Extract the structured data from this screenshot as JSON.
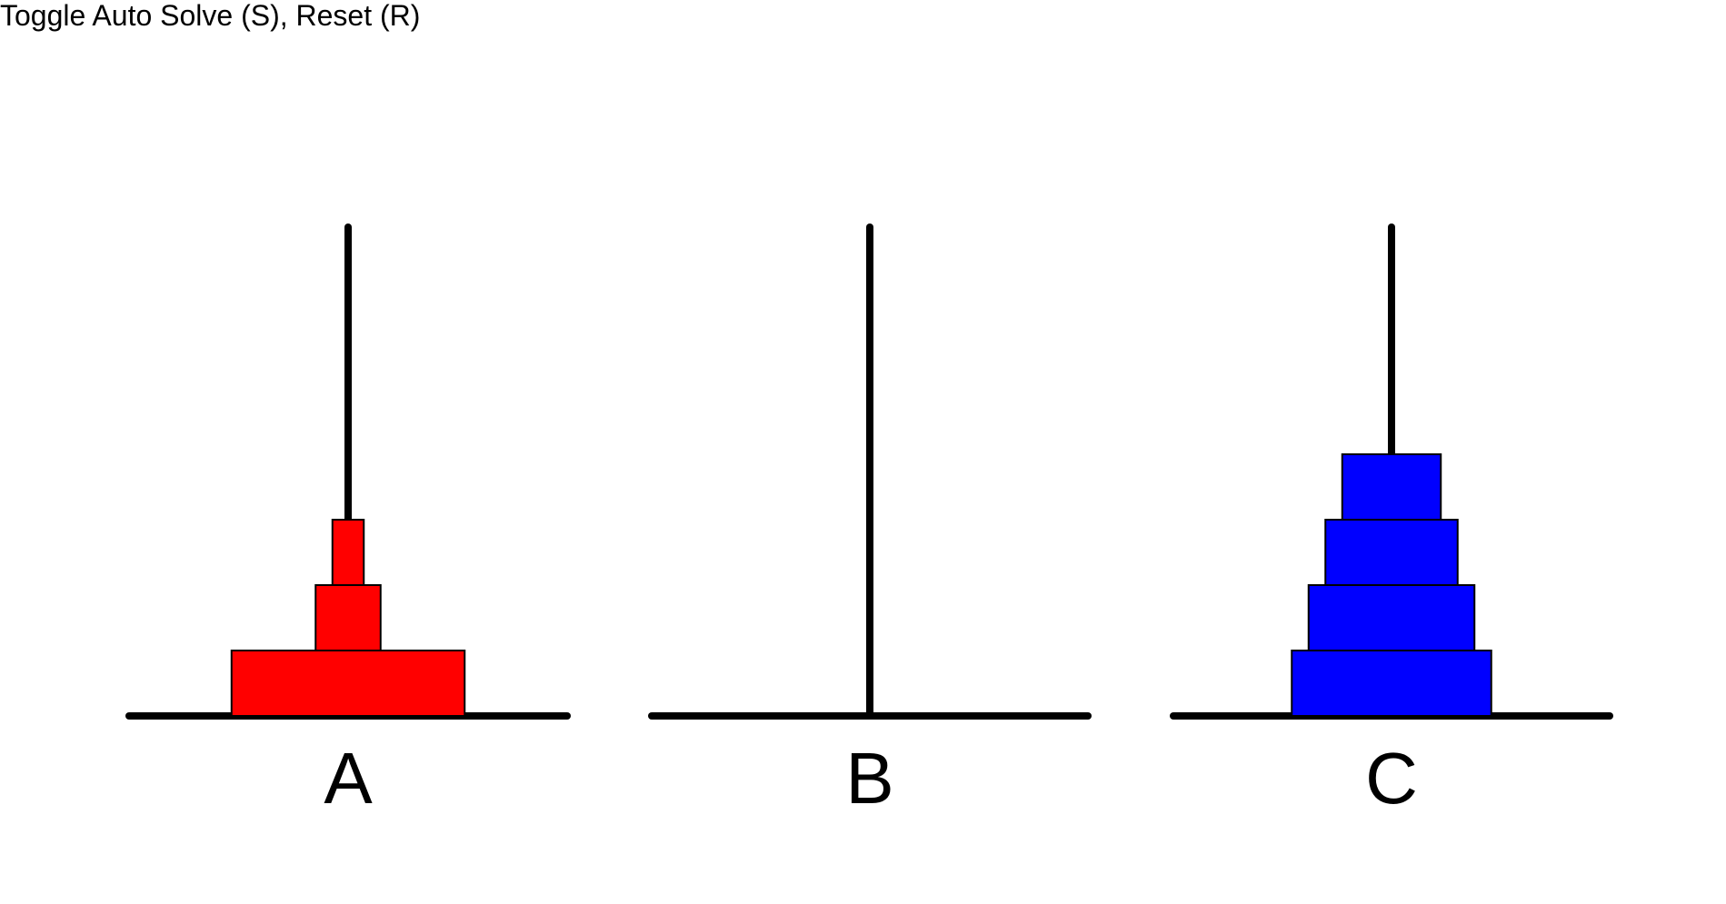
{
  "instructions": "Toggle Auto Solve (S), Reset (R)",
  "colors": {
    "background": "#ffffff",
    "peg": "#000000",
    "disk_outline": "#000000"
  },
  "pegs": [
    {
      "label": "A",
      "disks": [
        {
          "size": 13,
          "color": "#ff0000"
        },
        {
          "size": 3,
          "color": "#ff0000"
        },
        {
          "size": 1,
          "color": "#ff0000"
        }
      ]
    },
    {
      "label": "B",
      "disks": []
    },
    {
      "label": "C",
      "disks": [
        {
          "size": 11,
          "color": "#0000ff"
        },
        {
          "size": 9,
          "color": "#0000ff"
        },
        {
          "size": 7,
          "color": "#0000ff"
        },
        {
          "size": 5,
          "color": "#0000ff"
        }
      ]
    }
  ]
}
